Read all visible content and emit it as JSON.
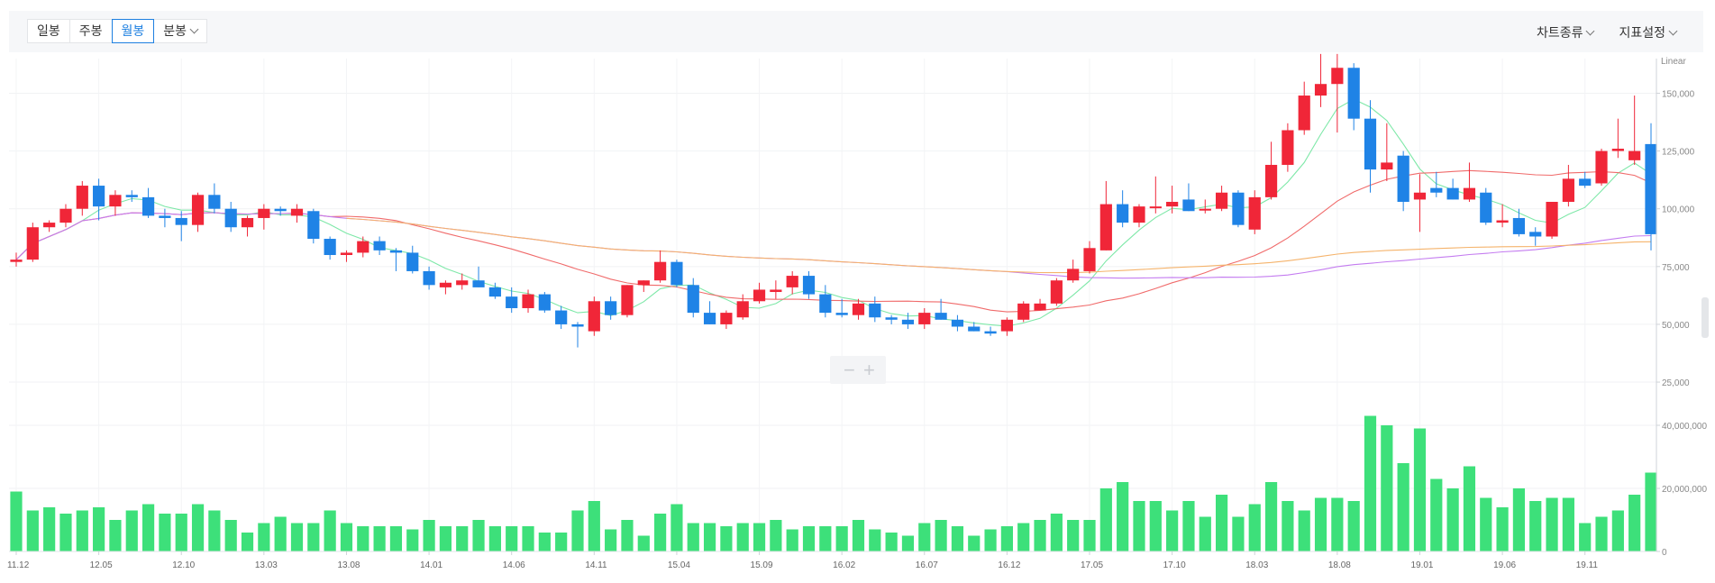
{
  "toolbar": {
    "tabs": [
      "일봉",
      "주봉",
      "월봉"
    ],
    "active_tab": "월봉",
    "minute_dropdown": "분봉",
    "chart_type_menu": "차트종류",
    "indicator_menu": "지표설정"
  },
  "zoom_controls": {
    "minus": "−",
    "plus": "+"
  },
  "colors": {
    "up": "#f02638",
    "down": "#1f83e6",
    "volume": "#3de07a",
    "ma_green": "#7ee8a8",
    "ma_red": "#f06b6b",
    "ma_purple": "#c47cf0",
    "ma_orange": "#f5b36b"
  },
  "chart_data": {
    "type": "candlestick",
    "scale_label": "Linear",
    "price_axis": {
      "ticks": [
        "25,000",
        "50,000",
        "75,000",
        "100,000",
        "125,000",
        "150,000"
      ],
      "range": [
        18000,
        165000
      ]
    },
    "volume_axis": {
      "ticks": [
        "0",
        "20,000,000",
        "40,000,000"
      ],
      "range": [
        0,
        48000000
      ]
    },
    "x_tick_labels": [
      {
        "i": 0,
        "label": "11.12"
      },
      {
        "i": 5,
        "label": "12.05"
      },
      {
        "i": 10,
        "label": "12.10"
      },
      {
        "i": 15,
        "label": "13.03"
      },
      {
        "i": 20,
        "label": "13.08"
      },
      {
        "i": 25,
        "label": "14.01"
      },
      {
        "i": 30,
        "label": "14.06"
      },
      {
        "i": 35,
        "label": "14.11"
      },
      {
        "i": 40,
        "label": "15.04"
      },
      {
        "i": 45,
        "label": "15.09"
      },
      {
        "i": 50,
        "label": "16.02"
      },
      {
        "i": 55,
        "label": "16.07"
      },
      {
        "i": 60,
        "label": "16.12"
      },
      {
        "i": 65,
        "label": "17.05"
      },
      {
        "i": 70,
        "label": "17.10"
      },
      {
        "i": 75,
        "label": "18.03"
      },
      {
        "i": 80,
        "label": "18.08"
      },
      {
        "i": 85,
        "label": "19.01"
      },
      {
        "i": 90,
        "label": "19.06"
      },
      {
        "i": 95,
        "label": "19.11"
      }
    ],
    "candles": [
      [
        77000,
        81000,
        75000,
        78000
      ],
      [
        78000,
        94000,
        77000,
        92000
      ],
      [
        92000,
        95000,
        90000,
        94000
      ],
      [
        94000,
        102000,
        92000,
        100000
      ],
      [
        100000,
        112000,
        97000,
        110000
      ],
      [
        110000,
        113000,
        95000,
        101000
      ],
      [
        101000,
        108000,
        97000,
        106000
      ],
      [
        106000,
        108000,
        103000,
        105000
      ],
      [
        105000,
        109000,
        96000,
        97000
      ],
      [
        97000,
        100000,
        92000,
        96000
      ],
      [
        96000,
        99000,
        86000,
        93000
      ],
      [
        93000,
        107000,
        90000,
        106000
      ],
      [
        106000,
        111000,
        98000,
        100000
      ],
      [
        100000,
        103000,
        90000,
        92000
      ],
      [
        92000,
        97000,
        88000,
        96000
      ],
      [
        96000,
        102000,
        91000,
        100000
      ],
      [
        100000,
        101000,
        97000,
        99000
      ],
      [
        97000,
        102000,
        94000,
        100000
      ],
      [
        99000,
        100000,
        85000,
        87000
      ],
      [
        87000,
        88000,
        78000,
        80000
      ],
      [
        80000,
        82000,
        77000,
        81000
      ],
      [
        81000,
        88000,
        79000,
        86000
      ],
      [
        86000,
        88000,
        80000,
        82000
      ],
      [
        82000,
        83000,
        73000,
        81000
      ],
      [
        81000,
        84000,
        72000,
        73000
      ],
      [
        73000,
        75000,
        65000,
        67000
      ],
      [
        66000,
        69000,
        63000,
        68000
      ],
      [
        67000,
        72000,
        65000,
        69000
      ],
      [
        69000,
        75000,
        66000,
        66000
      ],
      [
        66000,
        68000,
        61000,
        62000
      ],
      [
        62000,
        66000,
        55000,
        57000
      ],
      [
        57000,
        65000,
        55000,
        63000
      ],
      [
        63000,
        64000,
        55000,
        56000
      ],
      [
        56000,
        58000,
        48000,
        50000
      ],
      [
        50000,
        51000,
        40000,
        49000
      ],
      [
        47000,
        62000,
        45000,
        60000
      ],
      [
        60000,
        62000,
        52000,
        54000
      ],
      [
        54000,
        67000,
        53000,
        67000
      ],
      [
        67000,
        69000,
        64000,
        69000
      ],
      [
        69000,
        82000,
        68000,
        77000
      ],
      [
        77000,
        78000,
        66000,
        67000
      ],
      [
        67000,
        70000,
        53000,
        55000
      ],
      [
        55000,
        60000,
        50000,
        50000
      ],
      [
        50000,
        56000,
        48000,
        55000
      ],
      [
        53000,
        63000,
        52000,
        60000
      ],
      [
        60000,
        68000,
        59000,
        65000
      ],
      [
        64000,
        69000,
        61000,
        65000
      ],
      [
        66000,
        73000,
        63000,
        71000
      ],
      [
        71000,
        73000,
        61000,
        63000
      ],
      [
        63000,
        67000,
        53000,
        55000
      ],
      [
        55000,
        61000,
        53000,
        54000
      ],
      [
        54000,
        61000,
        52000,
        59000
      ],
      [
        59000,
        62000,
        51000,
        53000
      ],
      [
        53000,
        54000,
        50000,
        52000
      ],
      [
        52000,
        55000,
        48000,
        50000
      ],
      [
        50000,
        57000,
        48000,
        55000
      ],
      [
        55000,
        61000,
        52000,
        52000
      ],
      [
        52000,
        54000,
        47000,
        49000
      ],
      [
        49000,
        51000,
        47000,
        47000
      ],
      [
        47000,
        49000,
        45000,
        46000
      ],
      [
        47000,
        53000,
        45000,
        52000
      ],
      [
        52000,
        60000,
        51000,
        59000
      ],
      [
        56000,
        61000,
        56000,
        59000
      ],
      [
        59000,
        70000,
        58000,
        69000
      ],
      [
        69000,
        78000,
        68000,
        74000
      ],
      [
        73000,
        86000,
        72000,
        83000
      ],
      [
        82000,
        112000,
        82000,
        102000
      ],
      [
        102000,
        108000,
        92000,
        94000
      ],
      [
        94000,
        102000,
        92000,
        101000
      ],
      [
        101000,
        114000,
        98000,
        101000
      ],
      [
        101000,
        110000,
        98000,
        103000
      ],
      [
        104000,
        111000,
        99000,
        99000
      ],
      [
        100000,
        104000,
        98000,
        100000
      ],
      [
        100000,
        110000,
        99000,
        107000
      ],
      [
        107000,
        108000,
        92000,
        93000
      ],
      [
        91000,
        108000,
        89000,
        105000
      ],
      [
        105000,
        129000,
        104000,
        119000
      ],
      [
        119000,
        137000,
        116000,
        134000
      ],
      [
        134000,
        155000,
        132000,
        149000
      ],
      [
        149000,
        167000,
        144000,
        154000
      ],
      [
        154000,
        167000,
        133000,
        161000
      ],
      [
        161000,
        163000,
        134000,
        139000
      ],
      [
        139000,
        147000,
        107000,
        117000
      ],
      [
        117000,
        137000,
        112000,
        120000
      ],
      [
        123000,
        125000,
        99000,
        103000
      ],
      [
        104000,
        115000,
        90000,
        107000
      ],
      [
        109000,
        116000,
        105000,
        107000
      ],
      [
        109000,
        113000,
        104000,
        104000
      ],
      [
        104000,
        120000,
        103000,
        109000
      ],
      [
        107000,
        109000,
        93000,
        94000
      ],
      [
        94000,
        102000,
        92000,
        95000
      ],
      [
        96000,
        100000,
        88000,
        89000
      ],
      [
        90000,
        92000,
        84000,
        88000
      ],
      [
        88000,
        103000,
        87000,
        103000
      ],
      [
        103000,
        119000,
        101000,
        113000
      ],
      [
        113000,
        116000,
        109000,
        110000
      ],
      [
        111000,
        126000,
        110000,
        125000
      ],
      [
        125000,
        139000,
        122000,
        126000
      ],
      [
        121000,
        149000,
        119000,
        125000
      ],
      [
        128000,
        137000,
        82000,
        89000
      ]
    ],
    "volume": [
      19,
      13,
      14,
      12,
      13,
      14,
      10,
      13,
      15,
      12,
      12,
      15,
      13,
      10,
      6,
      9,
      11,
      9,
      9,
      13,
      9,
      8,
      8,
      8,
      7,
      10,
      8,
      8,
      10,
      8,
      8,
      8,
      6,
      6,
      13,
      16,
      7,
      10,
      5,
      12,
      15,
      9,
      9,
      8,
      9,
      9,
      10,
      7,
      8,
      8,
      8,
      10,
      7,
      6,
      5,
      9,
      10,
      8,
      5,
      7,
      8,
      9,
      10,
      12,
      10,
      10,
      20,
      22,
      16,
      16,
      13,
      16,
      11,
      18,
      11,
      15,
      22,
      16,
      13,
      17,
      17,
      16,
      43,
      40,
      28,
      39,
      23,
      20,
      27,
      17,
      14,
      20,
      16,
      17,
      17,
      9,
      11,
      13,
      18,
      25
    ]
  }
}
